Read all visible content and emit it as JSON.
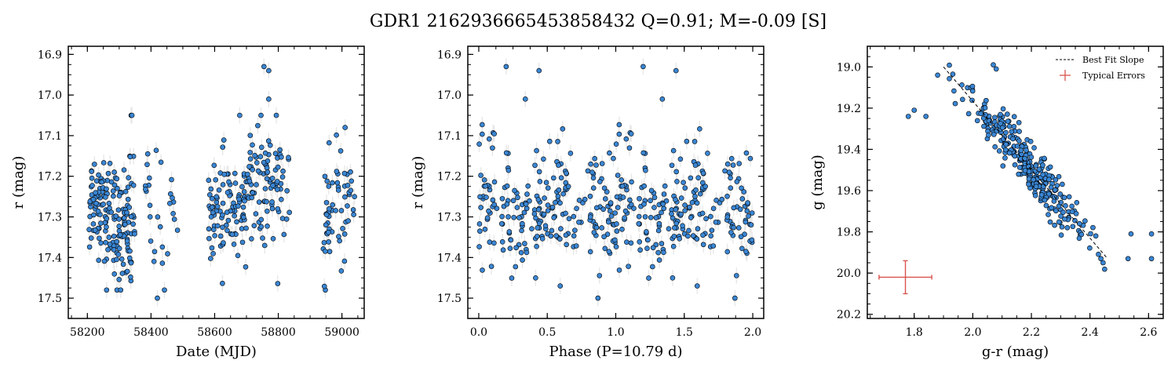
{
  "figure": {
    "title": "GDR1 2162936665453858432  Q=0.91; M=-0.09 [S]"
  },
  "colors": {
    "point_fill": "#3a86d4",
    "point_edge": "#000000",
    "error_bar": "#e6e6e6",
    "fit_line": "#000000",
    "typical_error": "#d9534f"
  },
  "chart_data": [
    {
      "id": "lightcurve",
      "type": "scatter",
      "xlabel": "Date (MJD)",
      "ylabel": "r (mag)",
      "xlim": [
        58140,
        59070
      ],
      "ylim": [
        17.55,
        16.88
      ],
      "y_inverted": true,
      "xticks": [
        58200,
        58400,
        58600,
        58800,
        59000
      ],
      "yticks": [
        16.9,
        17.0,
        17.1,
        17.2,
        17.3,
        17.4,
        17.5
      ],
      "seasons": [
        {
          "x_range": [
            58205,
            58350
          ],
          "y_mean": 17.3,
          "y_sd": 0.075,
          "n": 170
        },
        {
          "x_range": [
            58380,
            58485
          ],
          "y_mean": 17.29,
          "y_sd": 0.085,
          "n": 28
        },
        {
          "x_range": [
            58580,
            58700
          ],
          "y_mean": 17.27,
          "y_sd": 0.07,
          "n": 95
        },
        {
          "x_range": [
            58700,
            58835
          ],
          "y_mean": 17.22,
          "y_sd": 0.09,
          "n": 95
        },
        {
          "x_range": [
            58940,
            59040
          ],
          "y_mean": 17.29,
          "y_sd": 0.075,
          "n": 58
        }
      ],
      "highlights": [
        {
          "x": 58755,
          "y": 16.93
        },
        {
          "x": 58770,
          "y": 16.94
        },
        {
          "x": 58770,
          "y": 17.01
        },
        {
          "x": 58340,
          "y": 17.05
        },
        {
          "x": 58420,
          "y": 17.5
        },
        {
          "x": 59010,
          "y": 17.08
        }
      ],
      "y_error": 0.02
    },
    {
      "id": "phased",
      "type": "scatter",
      "xlabel": "Phase (P=10.79 d)",
      "ylabel": "r (mag)",
      "xlim": [
        -0.08,
        2.08
      ],
      "ylim": [
        17.55,
        16.88
      ],
      "y_inverted": true,
      "xticks": [
        0.0,
        0.5,
        1.0,
        1.5,
        2.0
      ],
      "xtick_labels": [
        "0.0",
        "0.5",
        "1.0",
        "1.5",
        "2.0"
      ],
      "yticks": [
        16.9,
        17.0,
        17.1,
        17.2,
        17.3,
        17.4,
        17.5
      ],
      "period_days": 10.79,
      "y_mean": 17.28,
      "y_sd": 0.08,
      "n": 446,
      "highlights": [
        {
          "x": 0.2,
          "y": 16.93
        },
        {
          "x": 1.2,
          "y": 16.93
        },
        {
          "x": 0.44,
          "y": 16.94
        },
        {
          "x": 1.44,
          "y": 16.94
        },
        {
          "x": 0.34,
          "y": 17.01
        },
        {
          "x": 1.34,
          "y": 17.01
        },
        {
          "x": 0.87,
          "y": 17.5
        },
        {
          "x": 1.87,
          "y": 17.5
        }
      ],
      "y_error": 0.02
    },
    {
      "id": "color_magnitude",
      "type": "scatter",
      "xlabel": "g-r (mag)",
      "ylabel": "g (mag)",
      "xlim": [
        1.64,
        2.65
      ],
      "ylim": [
        20.22,
        18.9
      ],
      "y_inverted": true,
      "xticks": [
        1.8,
        2.0,
        2.2,
        2.4,
        2.6
      ],
      "xtick_labels": [
        "1.8",
        "2.0",
        "2.2",
        "2.4",
        "2.6"
      ],
      "yticks": [
        19.0,
        19.2,
        19.4,
        19.6,
        19.8,
        20.0,
        20.2
      ],
      "ytick_labels": [
        "19.0",
        "19.2",
        "19.4",
        "19.6",
        "19.8",
        "20.0",
        "20.2"
      ],
      "cloud": {
        "x_mean": 2.19,
        "x_sd": 0.1,
        "scatter": 0.06,
        "n": 300
      },
      "best_fit_slope": {
        "x": [
          1.9,
          2.46
        ],
        "y": [
          19.0,
          19.93
        ]
      },
      "extra_points": [
        {
          "x": 1.78,
          "y": 19.24
        },
        {
          "x": 1.8,
          "y": 19.21
        },
        {
          "x": 1.84,
          "y": 19.24
        },
        {
          "x": 1.88,
          "y": 19.04
        },
        {
          "x": 2.07,
          "y": 18.99
        },
        {
          "x": 2.08,
          "y": 19.01
        },
        {
          "x": 2.42,
          "y": 19.82
        },
        {
          "x": 2.53,
          "y": 19.93
        },
        {
          "x": 2.54,
          "y": 19.81
        },
        {
          "x": 2.61,
          "y": 19.81
        },
        {
          "x": 2.61,
          "y": 19.93
        }
      ],
      "typical_errors": {
        "x": 1.77,
        "y": 20.02,
        "xerr": 0.09,
        "yerr": 0.08
      },
      "legend": {
        "placement": "upper right",
        "entries": [
          "Best Fit Slope",
          "Typical Errors"
        ]
      }
    }
  ]
}
